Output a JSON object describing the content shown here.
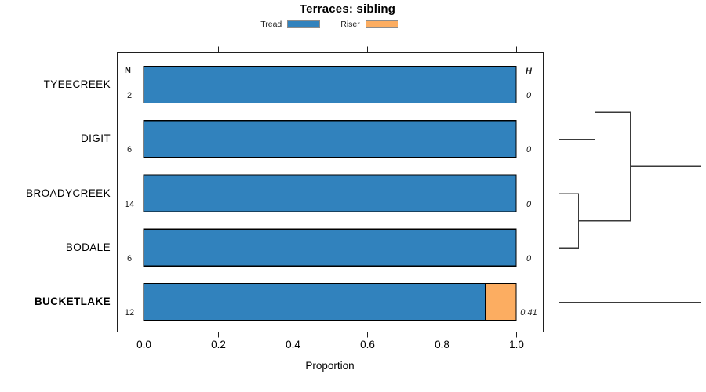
{
  "chart_data": {
    "type": "bar",
    "orientation": "horizontal",
    "stacked": true,
    "title": "Terraces: sibling",
    "xlabel": "Proportion",
    "xlim": [
      0,
      1
    ],
    "xtick_labels": [
      "0.0",
      "0.2",
      "0.4",
      "0.6",
      "0.8",
      "1.0"
    ],
    "grid": false,
    "legend_position": "top-center",
    "categories": [
      "TYEECREEK",
      "DIGIT",
      "BROADYCREEK",
      "BODALE",
      "BUCKETLAKE"
    ],
    "emphasized_category": "BUCKETLAKE",
    "series": [
      {
        "name": "Tread",
        "color": "#3182BD",
        "values": [
          1.0,
          1.0,
          1.0,
          1.0,
          0.917
        ]
      },
      {
        "name": "Riser",
        "color": "#FCAD61",
        "values": [
          0.0,
          0.0,
          0.0,
          0.0,
          0.083
        ]
      }
    ],
    "row_annotations": {
      "left_header": "N",
      "left_values": [
        "2",
        "6",
        "14",
        "6",
        "12"
      ],
      "right_header": "H",
      "right_values": [
        "0",
        "0",
        "0",
        "0",
        "0.41"
      ]
    },
    "dendrogram": {
      "leaves": [
        "TYEECREEK",
        "DIGIT",
        "BROADYCREEK",
        "BODALE",
        "BUCKETLAKE"
      ],
      "merges": [
        {
          "a": "leaf:TYEECREEK",
          "b": "leaf:DIGIT",
          "height": 0.254
        },
        {
          "a": "leaf:BROADYCREEK",
          "b": "leaf:BODALE",
          "height": 0.138
        },
        {
          "a": "merge:0",
          "b": "merge:1",
          "height": 0.503
        },
        {
          "a": "merge:2",
          "b": "leaf:BUCKETLAKE",
          "height": 1.0
        }
      ]
    },
    "colors": {
      "bar_border": "#000000",
      "axis": "#1f1f1f",
      "dendrogram_line": "#3a3a3a",
      "legend_swatch_border": "#8c8c8c"
    }
  }
}
